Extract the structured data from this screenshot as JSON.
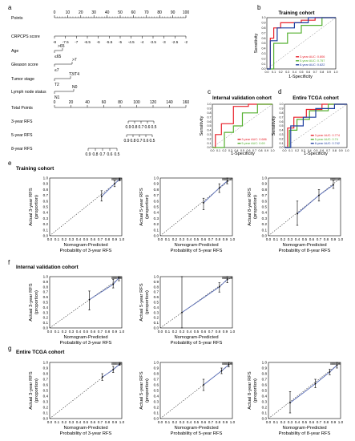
{
  "panel_letters": {
    "a": "a",
    "b": "b",
    "c": "c",
    "d": "d",
    "e": "e",
    "f": "f",
    "g": "g"
  },
  "nomogram": {
    "rows": [
      {
        "label": "Points",
        "ticks": [
          "0",
          "10",
          "20",
          "30",
          "40",
          "50",
          "60",
          "70",
          "80",
          "90",
          "100"
        ]
      },
      {
        "label": "CRPCPS score",
        "ticks": [
          "-8",
          "-7.5",
          "-7",
          "-6.5",
          "-6",
          "-5.5",
          "-5",
          "-4.5",
          "-4",
          "-3.5",
          "-3",
          "-2.5",
          "-2"
        ]
      },
      {
        "label": "Age",
        "ticks": [
          "≤65",
          ">65"
        ]
      },
      {
        "label": "Gleason score",
        "ticks": [
          "≤7",
          ">7"
        ]
      },
      {
        "label": "Tumor stage",
        "ticks": [
          "T2",
          "T3/T4"
        ]
      },
      {
        "label": "Lymph node status",
        "ticks": [
          "N1",
          "N0"
        ]
      },
      {
        "label": "Total Points",
        "ticks": [
          "0",
          "20",
          "40",
          "60",
          "80",
          "100",
          "120",
          "140",
          "160"
        ]
      },
      {
        "label": "3-year RFS",
        "ticks": [
          "0.9",
          "0.8",
          "0.7",
          "0.6",
          "0.5"
        ]
      },
      {
        "label": "5-year RFS",
        "ticks": [
          "0.9",
          "0.8",
          "0.7",
          "0.6",
          "0.5"
        ]
      },
      {
        "label": "8-year RFS",
        "ticks": [
          "0.9",
          "0.8",
          "0.7",
          "0.6",
          "0.5"
        ]
      }
    ]
  },
  "roc_plots": [
    {
      "title": "Training cohort",
      "xlabel": "1-Specificity",
      "ylabel": "Sensitivity",
      "legend": [
        "3-year AUC: 0.806",
        "5-year AUC: 0.757",
        "8-year AUC: 0.822"
      ],
      "ticks": [
        "0.0",
        "0.1",
        "0.2",
        "0.3",
        "0.4",
        "0.5",
        "0.6",
        "0.7",
        "0.8",
        "0.9",
        "1.0"
      ]
    },
    {
      "title": "Internal validation cohort",
      "xlabel": "1-Specificity",
      "ylabel": "Sensitivity",
      "legend": [
        "3-year AUC: 0.686",
        "5-year AUC: 0.69"
      ],
      "ticks": [
        "0.0",
        "0.1",
        "0.2",
        "0.3",
        "0.4",
        "0.5",
        "0.6",
        "0.7",
        "0.8",
        "0.9",
        "1.0"
      ]
    },
    {
      "title": "Entire TCGA cohort",
      "xlabel": "1-Specificity",
      "ylabel": "Sensitivity",
      "legend": [
        "3-year AUC: 0.774",
        "5-year AUC: 0.74",
        "8-year AUC: 0.742"
      ],
      "ticks": [
        "0.0",
        "0.1",
        "0.2",
        "0.3",
        "0.4",
        "0.5",
        "0.6",
        "0.7",
        "0.8",
        "0.9",
        "1.0"
      ]
    }
  ],
  "colors": {
    "red": "#e8202a",
    "green": "#55b030",
    "blue": "#1f3fa0",
    "calib": "#5b6fb8"
  },
  "calibration": {
    "sections": [
      "Training cohort",
      "Internal validation cohort",
      "Entire TCGA cohort"
    ],
    "ticks": [
      "0.0",
      "0.1",
      "0.2",
      "0.3",
      "0.4",
      "0.5",
      "0.6",
      "0.7",
      "0.8",
      "0.9",
      "1.0"
    ],
    "xtitle": "Nomogram-Predicted",
    "plots": [
      {
        "ylabel1": "Actual 3-year RFS",
        "ylabel2": "(proportion)",
        "xlabel2": "Probability of 3-year RFS"
      },
      {
        "ylabel1": "Actual 5-year RFS",
        "ylabel2": "(proportion)",
        "xlabel2": "Probability of 5-year RFS"
      },
      {
        "ylabel1": "Actual 8-year RFS",
        "ylabel2": "(proportion)",
        "xlabel2": "Probability of 8-year RFS"
      }
    ]
  },
  "chart_data": [
    {
      "type": "line",
      "title": "Training cohort",
      "xlabel": "1-Specificity",
      "ylabel": "Sensitivity",
      "xlim": [
        0,
        1
      ],
      "ylim": [
        0,
        1
      ],
      "series": [
        {
          "name": "3-year AUC: 0.806",
          "color": "red",
          "x": [
            0,
            0.05,
            0.05,
            0.1,
            0.1,
            0.2,
            0.2,
            0.5,
            0.5,
            0.7,
            0.7,
            1
          ],
          "y": [
            0,
            0,
            0.6,
            0.6,
            0.8,
            0.8,
            0.9,
            0.9,
            0.95,
            0.95,
            1,
            1
          ]
        },
        {
          "name": "5-year AUC: 0.757",
          "color": "green",
          "x": [
            0,
            0.1,
            0.1,
            0.3,
            0.3,
            0.5,
            0.5,
            0.8,
            0.8,
            1
          ],
          "y": [
            0,
            0,
            0.5,
            0.5,
            0.7,
            0.7,
            0.85,
            0.85,
            1,
            1
          ]
        },
        {
          "name": "8-year AUC: 0.822",
          "color": "blue",
          "x": [
            0,
            0.05,
            0.05,
            0.15,
            0.15,
            0.4,
            0.4,
            0.6,
            0.6,
            1
          ],
          "y": [
            0,
            0,
            0.55,
            0.55,
            0.8,
            0.8,
            0.9,
            0.9,
            1,
            1
          ]
        }
      ]
    },
    {
      "type": "line",
      "title": "Internal validation cohort",
      "xlabel": "1-Specificity",
      "ylabel": "Sensitivity",
      "xlim": [
        0,
        1
      ],
      "ylim": [
        0,
        1
      ],
      "series": [
        {
          "name": "3-year AUC: 0.686",
          "color": "red",
          "x": [
            0,
            0.05,
            0.05,
            0.15,
            0.15,
            0.35,
            0.35,
            0.6,
            0.6,
            1
          ],
          "y": [
            0,
            0,
            0.3,
            0.3,
            0.55,
            0.55,
            0.95,
            0.95,
            1,
            1
          ]
        },
        {
          "name": "5-year AUC: 0.69",
          "color": "green",
          "x": [
            0,
            0.2,
            0.2,
            0.35,
            0.35,
            0.5,
            0.5,
            0.75,
            0.75,
            1
          ],
          "y": [
            0,
            0,
            0.35,
            0.35,
            0.5,
            0.5,
            0.8,
            0.8,
            1,
            1
          ]
        }
      ]
    },
    {
      "type": "line",
      "title": "Entire TCGA cohort",
      "xlabel": "1-Specificity",
      "ylabel": "Sensitivity",
      "xlim": [
        0,
        1
      ],
      "ylim": [
        0,
        1
      ],
      "series": [
        {
          "name": "3-year AUC: 0.774",
          "color": "red",
          "x": [
            0,
            0.05,
            0.05,
            0.15,
            0.15,
            0.35,
            0.35,
            0.6,
            0.6,
            1
          ],
          "y": [
            0,
            0,
            0.45,
            0.45,
            0.7,
            0.7,
            0.88,
            0.88,
            1,
            1
          ]
        },
        {
          "name": "5-year AUC: 0.74",
          "color": "green",
          "x": [
            0,
            0.08,
            0.08,
            0.2,
            0.2,
            0.4,
            0.4,
            0.7,
            0.7,
            1
          ],
          "y": [
            0,
            0,
            0.4,
            0.4,
            0.65,
            0.65,
            0.85,
            0.85,
            1,
            1
          ]
        },
        {
          "name": "8-year AUC: 0.742",
          "color": "blue",
          "x": [
            0,
            0.1,
            0.1,
            0.3,
            0.3,
            0.5,
            0.5,
            0.8,
            0.8,
            1
          ],
          "y": [
            0,
            0,
            0.5,
            0.5,
            0.7,
            0.7,
            0.9,
            0.9,
            1,
            1
          ]
        }
      ]
    },
    {
      "type": "line",
      "title": "Training cohort 3-year",
      "xlim": [
        0,
        1
      ],
      "ylim": [
        0,
        1
      ],
      "points": [
        {
          "x": 0.72,
          "y": 0.68,
          "lo": 0.6,
          "hi": 0.78
        },
        {
          "x": 0.9,
          "y": 0.9,
          "lo": 0.85,
          "hi": 0.95
        },
        {
          "x": 0.97,
          "y": 0.98,
          "lo": 0.95,
          "hi": 1.0
        }
      ]
    },
    {
      "type": "line",
      "title": "Training cohort 5-year",
      "xlim": [
        0,
        1
      ],
      "ylim": [
        0,
        1
      ],
      "points": [
        {
          "x": 0.6,
          "y": 0.57,
          "lo": 0.45,
          "hi": 0.65
        },
        {
          "x": 0.82,
          "y": 0.83,
          "lo": 0.75,
          "hi": 0.9
        },
        {
          "x": 0.93,
          "y": 0.95,
          "lo": 0.9,
          "hi": 1.0
        }
      ]
    },
    {
      "type": "line",
      "title": "Training cohort 8-year",
      "xlim": [
        0,
        1
      ],
      "ylim": [
        0,
        1
      ],
      "points": [
        {
          "x": 0.4,
          "y": 0.38,
          "lo": 0.18,
          "hi": 0.6
        },
        {
          "x": 0.7,
          "y": 0.7,
          "lo": 0.6,
          "hi": 0.8
        },
        {
          "x": 0.9,
          "y": 0.88,
          "lo": 0.82,
          "hi": 0.95
        }
      ]
    },
    {
      "type": "line",
      "title": "Internal validation cohort 3-year",
      "xlim": [
        0,
        1
      ],
      "ylim": [
        0,
        1
      ],
      "points": [
        {
          "x": 0.55,
          "y": 0.55,
          "lo": 0.35,
          "hi": 0.72
        },
        {
          "x": 0.88,
          "y": 0.85,
          "lo": 0.78,
          "hi": 0.95
        },
        {
          "x": 0.96,
          "y": 0.98,
          "lo": 0.92,
          "hi": 1.0
        }
      ]
    },
    {
      "type": "line",
      "title": "Internal validation cohort 5-year",
      "xlim": [
        0,
        1
      ],
      "ylim": [
        0,
        1
      ],
      "points": [
        {
          "x": 0.3,
          "y": 0.3,
          "lo": 0.0,
          "hi": 1.0
        },
        {
          "x": 0.82,
          "y": 0.8,
          "lo": 0.7,
          "hi": 0.88
        },
        {
          "x": 0.93,
          "y": 0.95,
          "lo": 0.88,
          "hi": 1.0
        }
      ]
    },
    {
      "type": "line",
      "title": "Entire TCGA cohort 3-year",
      "xlim": [
        0,
        1
      ],
      "ylim": [
        0,
        1
      ],
      "points": [
        {
          "x": 0.73,
          "y": 0.74,
          "lo": 0.68,
          "hi": 0.8
        },
        {
          "x": 0.88,
          "y": 0.87,
          "lo": 0.82,
          "hi": 0.93
        },
        {
          "x": 0.97,
          "y": 0.97,
          "lo": 0.95,
          "hi": 1.0
        }
      ]
    },
    {
      "type": "line",
      "title": "Entire TCGA cohort 5-year",
      "xlim": [
        0,
        1
      ],
      "ylim": [
        0,
        1
      ],
      "points": [
        {
          "x": 0.6,
          "y": 0.6,
          "lo": 0.5,
          "hi": 0.7
        },
        {
          "x": 0.85,
          "y": 0.85,
          "lo": 0.8,
          "hi": 0.9
        },
        {
          "x": 0.95,
          "y": 0.96,
          "lo": 0.92,
          "hi": 1.0
        }
      ]
    },
    {
      "type": "line",
      "title": "Entire TCGA cohort 8-year",
      "xlim": [
        0,
        1
      ],
      "ylim": [
        0,
        1
      ],
      "points": [
        {
          "x": 0.3,
          "y": 0.28,
          "lo": 0.1,
          "hi": 0.48
        },
        {
          "x": 0.65,
          "y": 0.62,
          "lo": 0.55,
          "hi": 0.7
        },
        {
          "x": 0.85,
          "y": 0.83,
          "lo": 0.78,
          "hi": 0.88
        },
        {
          "x": 0.95,
          "y": 0.95,
          "lo": 0.9,
          "hi": 1.0
        }
      ]
    }
  ]
}
